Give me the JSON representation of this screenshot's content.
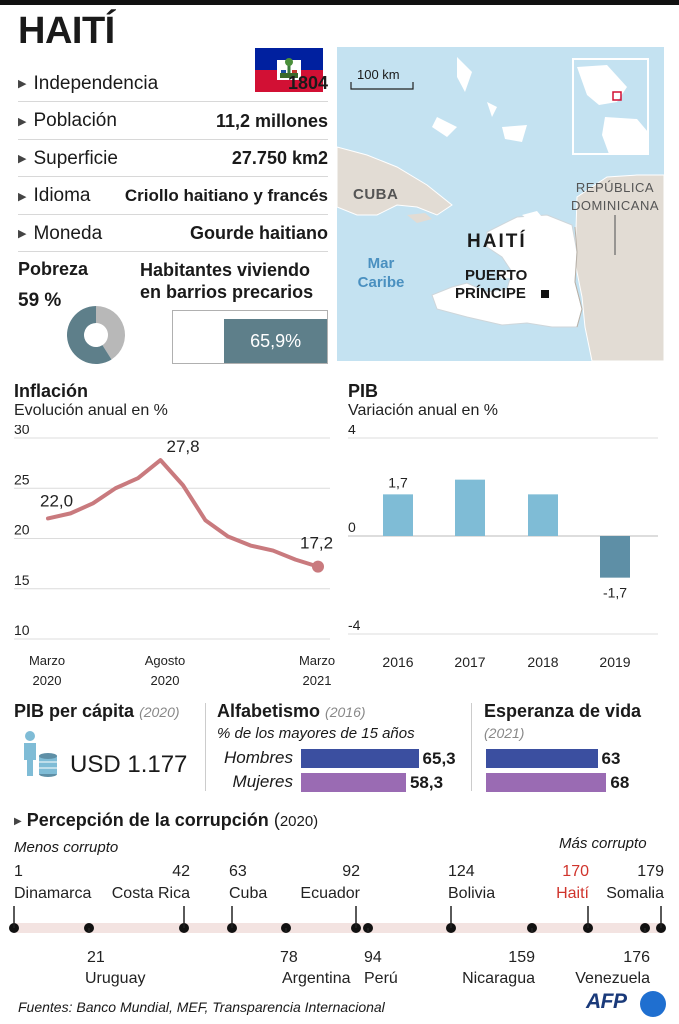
{
  "country": {
    "title": "HAITÍ",
    "facts": [
      {
        "label": "Independencia",
        "value": "1804"
      },
      {
        "label": "Población",
        "value": "11,2 millones"
      },
      {
        "label": "Superficie",
        "value": "27.750 km2"
      },
      {
        "label": "Idioma",
        "value": "Criollo haitiano y francés"
      },
      {
        "label": "Moneda",
        "value": "Gourde haitiano"
      }
    ]
  },
  "poverty": {
    "label": "Pobreza",
    "value_text": "59 %",
    "value": 59
  },
  "slums": {
    "label_line1": "Habitantes viviendo",
    "label_line2": "en barrios precarios",
    "value_text": "65,9%",
    "value": 65.9
  },
  "map": {
    "scale_label": "100 km",
    "cuba": "CUBA",
    "sea_line1": "Mar",
    "sea_line2": "Caribe",
    "haiti": "HAITÍ",
    "capital_line1": "PUERTO",
    "capital_line2": "PRÍNCIPE",
    "dr_line1": "REPÚBLICA",
    "dr_line2": "DOMINICANA"
  },
  "inflation": {
    "title": "Inflación",
    "subtitle": "Evolución anual en %",
    "chart_data": {
      "type": "line",
      "y": [
        22.0,
        22.5,
        23.5,
        25.0,
        26.0,
        27.8,
        25.3,
        21.8,
        20.2,
        19.3,
        18.8,
        17.9,
        17.2
      ],
      "ylim": [
        10,
        30
      ],
      "yticks": [
        "30",
        "25",
        "20",
        "15",
        "10"
      ],
      "labels": {
        "start": "22,0",
        "peak": "27,8",
        "end": "17,2"
      },
      "xticks": [
        {
          "line1": "Marzo",
          "line2": "2020"
        },
        {
          "line1": "Agosto",
          "line2": "2020"
        },
        {
          "line1": "Marzo",
          "line2": "2021"
        }
      ],
      "color": "#c97a7e"
    }
  },
  "gdp": {
    "title": "PIB",
    "subtitle": "Variación anual en %",
    "chart_data": {
      "type": "bar",
      "categories": [
        "2016",
        "2017",
        "2018",
        "2019"
      ],
      "values": [
        1.7,
        2.3,
        1.7,
        -1.7
      ],
      "labels": [
        "1,7",
        "",
        "",
        "-1,7"
      ],
      "ylim": [
        -4,
        4
      ],
      "yticks": [
        "4",
        "0",
        "-4"
      ],
      "positive_color": "#7fbcd6",
      "negative_color": "#5e8fa6"
    }
  },
  "gdp_per_capita": {
    "title": "PIB per cápita",
    "year": "(2020)",
    "value": "USD 1.177"
  },
  "literacy": {
    "title": "Alfabetismo",
    "year": "(2016)",
    "subtitle": "% de los mayores de 15 años",
    "rows": [
      {
        "label": "Hombres",
        "value_text": "65,3",
        "value": 65.3,
        "color": "#3b4fa0"
      },
      {
        "label": "Mujeres",
        "value_text": "58,3",
        "value": 58.3,
        "color": "#9a6bb3"
      }
    ]
  },
  "life_expectancy": {
    "title": "Esperanza de vida",
    "year": "(2021)",
    "rows": [
      {
        "value_text": "63",
        "value": 63,
        "color": "#3b4fa0"
      },
      {
        "value_text": "68",
        "value": 68,
        "color": "#9a6bb3"
      }
    ]
  },
  "corruption": {
    "title": "Percepción de la corrupción",
    "year_open": "(",
    "year": "2020)",
    "less_label": "Menos corrupto",
    "more_label": "Más corrupto",
    "countries": [
      {
        "rank": "1",
        "name": "Dinamarca",
        "pos": "top"
      },
      {
        "rank": "21",
        "name": "Uruguay",
        "pos": "bottom"
      },
      {
        "rank": "42",
        "name": "Costa Rica",
        "pos": "top"
      },
      {
        "rank": "63",
        "name": "Cuba",
        "pos": "top"
      },
      {
        "rank": "78",
        "name": "Argentina",
        "pos": "bottom"
      },
      {
        "rank": "92",
        "name": "Ecuador",
        "pos": "top"
      },
      {
        "rank": "94",
        "name": "Perú",
        "pos": "bottom"
      },
      {
        "rank": "124",
        "name": "Bolivia",
        "pos": "top"
      },
      {
        "rank": "159",
        "name": "Nicaragua",
        "pos": "bottom"
      },
      {
        "rank": "170",
        "name": "Haití",
        "pos": "top",
        "highlight": true
      },
      {
        "rank": "176",
        "name": "Venezuela",
        "pos": "bottom"
      },
      {
        "rank": "179",
        "name": "Somalia",
        "pos": "top"
      }
    ]
  },
  "footer": {
    "sources": "Fuentes: Banco Mundial, MEF, Transparencia Internacional",
    "agency": "AFP"
  }
}
